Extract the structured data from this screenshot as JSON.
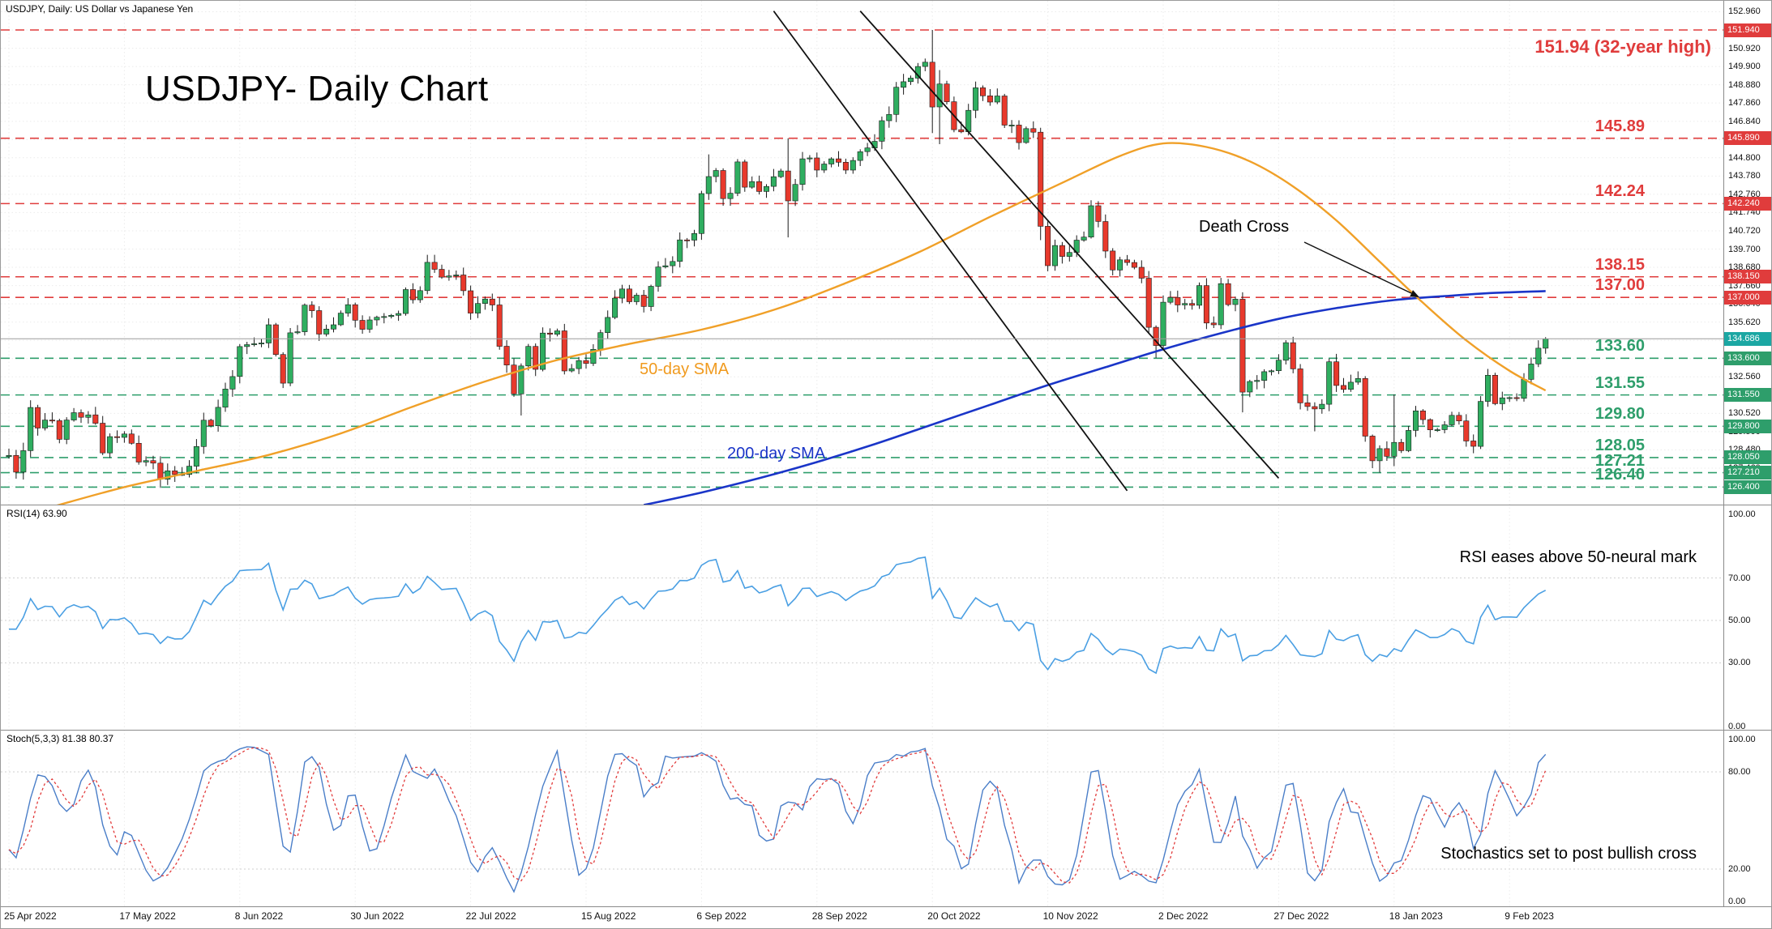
{
  "header": {
    "instrument_line": "USDJPY, Daily:  US Dollar vs Japanese Yen"
  },
  "title": "USDJPY- Daily Chart",
  "annotations": {
    "death_cross": "Death Cross",
    "sma50_label": "50-day SMA",
    "sma200_label": "200-day SMA",
    "rsi_note": "RSI eases above 50-neural mark",
    "stoch_note": "Stochastics set to post bullish cross"
  },
  "chart_data": {
    "type": "candlestick",
    "instrument": "USDJPY",
    "timeframe": "Daily",
    "title": "USDJPY- Daily Chart",
    "price_axis": {
      "top_tick": 152.96,
      "tick_step": 1.02,
      "tick_count": 27,
      "min": 125.45,
      "max": 153.2
    },
    "x_axis": {
      "bars_per_label": 16,
      "dates": [
        "25 Apr 2022",
        "17 May 2022",
        "8 Jun 2022",
        "30 Jun 2022",
        "22 Jul 2022",
        "15 Aug 2022",
        "6 Sep 2022",
        "28 Sep 2022",
        "20 Oct 2022",
        "10 Nov 2022",
        "2 Dec 2022",
        "27 Dec 2022",
        "18 Jan 2023",
        "9 Feb 2023"
      ]
    },
    "current_price": 134.686,
    "current_price_label": "134.686",
    "style": {
      "up": "#2fae60",
      "down": "#e8392c",
      "wick": "#1a1a1a",
      "sma50": "#f0a028",
      "sma200": "#1a35c8",
      "rsi": "#4a9fe3",
      "stoch_k": "#4a7ec8",
      "stoch_d": "#e23b3b",
      "current_line": "#9b9b9b",
      "current_tag": "#1ba7a3",
      "grid": "#ebebeb",
      "separator": "#8a8a8a",
      "trendline": "#111111"
    },
    "levels": [
      {
        "price": 151.94,
        "tag": "151.940",
        "note": "151.94 (32-year high)",
        "color": "#e03c3c",
        "kind": "resistance",
        "emphasis": true
      },
      {
        "price": 145.89,
        "tag": "145.890",
        "note": "145.89",
        "color": "#e03c3c",
        "kind": "resistance"
      },
      {
        "price": 142.24,
        "tag": "142.240",
        "note": "142.24",
        "color": "#e03c3c",
        "kind": "resistance"
      },
      {
        "price": 138.15,
        "tag": "138.150",
        "note": "138.15",
        "color": "#e03c3c",
        "kind": "resistance"
      },
      {
        "price": 137.0,
        "tag": "137.000",
        "note": "137.00",
        "color": "#e03c3c",
        "kind": "resistance"
      },
      {
        "price": 133.6,
        "tag": "133.600",
        "note": "133.60",
        "color": "#2e9e6b",
        "kind": "support"
      },
      {
        "price": 131.55,
        "tag": "131.550",
        "note": "131.55",
        "color": "#2e9e6b",
        "kind": "support"
      },
      {
        "price": 129.8,
        "tag": "129.800",
        "note": "129.80",
        "color": "#2e9e6b",
        "kind": "support"
      },
      {
        "price": 128.05,
        "tag": "128.050",
        "note": "128.05",
        "color": "#2e9e6b",
        "kind": "support"
      },
      {
        "price": 127.21,
        "tag": "127.210",
        "note": "127.21",
        "color": "#2e9e6b",
        "kind": "support"
      },
      {
        "price": 126.4,
        "tag": "126.400",
        "note": "126.40",
        "color": "#2e9e6b",
        "kind": "support"
      }
    ],
    "candles": {
      "first_open": 128.1,
      "closes": [
        128.17,
        127.24,
        128.44,
        130.85,
        129.7,
        130.15,
        130.11,
        129.07,
        130.15,
        130.56,
        130.3,
        130.44,
        129.97,
        128.31,
        129.22,
        129.18,
        129.37,
        128.85,
        127.8,
        127.88,
        127.74,
        126.84,
        127.31,
        127.1,
        127.11,
        127.57,
        128.67,
        130.14,
        129.83,
        130.86,
        131.88,
        132.58,
        134.25,
        134.36,
        134.41,
        134.45,
        135.47,
        133.81,
        132.21,
        135.02,
        135.08,
        136.57,
        136.26,
        134.95,
        135.23,
        135.47,
        136.12,
        136.59,
        135.72,
        135.22,
        135.74,
        135.89,
        135.93,
        136.0,
        136.1,
        137.44,
        136.87,
        137.38,
        138.96,
        138.57,
        138.13,
        138.2,
        138.25,
        137.37,
        136.12,
        136.66,
        136.91,
        136.58,
        134.27,
        133.22,
        131.61,
        133.17,
        134.26,
        132.98,
        135.01,
        134.94,
        135.13,
        132.89,
        133.02,
        133.47,
        133.31,
        134.1,
        135.03,
        135.88,
        136.96,
        137.47,
        136.76,
        137.12,
        136.49,
        137.62,
        138.7,
        138.77,
        139.01,
        140.21,
        140.2,
        140.57,
        142.8,
        143.75,
        144.09,
        142.52,
        142.82,
        144.57,
        143.16,
        143.47,
        142.92,
        143.2,
        143.74,
        144.06,
        142.39,
        143.31,
        144.74,
        144.79,
        144.11,
        144.45,
        144.74,
        144.55,
        144.11,
        144.65,
        145.14,
        145.35,
        145.72,
        146.87,
        147.22,
        148.74,
        149.05,
        149.25,
        149.9,
        150.14,
        147.64,
        148.92,
        147.93,
        146.37,
        146.25,
        147.45,
        148.71,
        148.26,
        147.91,
        148.25,
        146.62,
        146.63,
        145.65,
        146.43,
        146.23,
        140.97,
        138.77,
        139.9,
        139.29,
        139.51,
        140.2,
        140.37,
        142.12,
        141.24,
        139.59,
        138.53,
        139.1,
        138.95,
        138.68,
        138.07,
        135.33,
        134.31,
        136.73,
        137.0,
        136.58,
        136.66,
        136.56,
        137.66,
        135.57,
        135.47,
        137.77,
        136.6,
        136.9,
        131.71,
        132.3,
        132.36,
        132.85,
        132.9,
        133.49,
        134.47,
        133.01,
        131.11,
        130.9,
        130.77,
        131.03,
        133.4,
        132.08,
        131.86,
        132.26,
        132.47,
        129.25,
        127.87,
        128.55,
        128.12,
        128.9,
        128.44,
        129.57,
        130.66,
        130.17,
        129.6,
        129.61,
        129.88,
        130.41,
        130.1,
        128.98,
        128.68,
        131.19,
        132.65,
        131.06,
        131.39,
        131.4,
        131.36,
        132.42,
        133.28,
        134.16,
        134.686
      ],
      "overrides": {
        "3": {
          "high": 131.25
        },
        "21": {
          "low": 126.36
        },
        "58": {
          "high": 139.38
        },
        "71": {
          "low": 130.4
        },
        "97": {
          "high": 144.99
        },
        "108": {
          "high": 145.89,
          "low": 140.35
        },
        "128": {
          "high": 151.94,
          "low": 146.18
        },
        "129": {
          "high": 149.7,
          "low": 145.56
        },
        "143": {
          "low": 140.2
        },
        "144": {
          "low": 138.46
        },
        "159": {
          "low": 133.62
        },
        "171": {
          "low": 130.58
        },
        "181": {
          "low": 129.52
        },
        "189": {
          "low": 127.46
        },
        "190": {
          "low": 127.21
        },
        "192": {
          "high": 131.58,
          "low": 127.57
        }
      }
    },
    "sma50": [
      [
        6,
        125.3
      ],
      [
        16,
        126.4
      ],
      [
        26,
        127.3
      ],
      [
        36,
        128.2
      ],
      [
        46,
        129.4
      ],
      [
        56,
        130.9
      ],
      [
        66,
        132.3
      ],
      [
        76,
        133.5
      ],
      [
        86,
        134.4
      ],
      [
        96,
        135.2
      ],
      [
        106,
        136.3
      ],
      [
        116,
        137.8
      ],
      [
        126,
        139.5
      ],
      [
        136,
        141.5
      ],
      [
        146,
        143.4
      ],
      [
        154,
        144.9
      ],
      [
        160,
        145.6
      ],
      [
        166,
        145.4
      ],
      [
        172,
        144.6
      ],
      [
        178,
        143.2
      ],
      [
        184,
        141.3
      ],
      [
        190,
        139.0
      ],
      [
        196,
        136.7
      ],
      [
        202,
        134.6
      ],
      [
        208,
        132.9
      ],
      [
        213,
        131.8
      ]
    ],
    "sma200": [
      [
        88,
        125.4
      ],
      [
        96,
        126.1
      ],
      [
        104,
        126.9
      ],
      [
        112,
        127.8
      ],
      [
        120,
        128.8
      ],
      [
        128,
        129.9
      ],
      [
        136,
        131.0
      ],
      [
        144,
        132.1
      ],
      [
        152,
        133.1
      ],
      [
        160,
        134.1
      ],
      [
        168,
        135.0
      ],
      [
        176,
        135.8
      ],
      [
        184,
        136.4
      ],
      [
        192,
        136.85
      ],
      [
        200,
        137.1
      ],
      [
        206,
        137.25
      ],
      [
        213,
        137.35
      ]
    ],
    "trendlines": [
      {
        "b1": 106,
        "p1": 153.0,
        "b2": 155,
        "p2": 126.2
      },
      {
        "b1": 118,
        "p1": 153.0,
        "b2": 176,
        "p2": 126.9
      }
    ],
    "rsi": {
      "panel_label": "RSI(14) 63.90",
      "last": 63.9,
      "guides": [
        70,
        50,
        30
      ],
      "axis": [
        {
          "value": 100,
          "label": "100.00"
        },
        {
          "value": 70,
          "label": "70.00"
        },
        {
          "value": 50,
          "label": "50.00"
        },
        {
          "value": 30,
          "label": "30.00"
        },
        {
          "value": 0,
          "label": "0.00"
        }
      ]
    },
    "stoch": {
      "panel_label": "Stoch(5,3,3) 81.38 80.37",
      "last_k": 81.38,
      "last_d": 80.37,
      "guides": [
        80,
        20
      ],
      "axis": [
        {
          "value": 100,
          "label": "100.00"
        },
        {
          "value": 80,
          "label": "80.00"
        },
        {
          "value": 20,
          "label": "20.00"
        },
        {
          "value": 0,
          "label": "0.00"
        }
      ]
    }
  }
}
